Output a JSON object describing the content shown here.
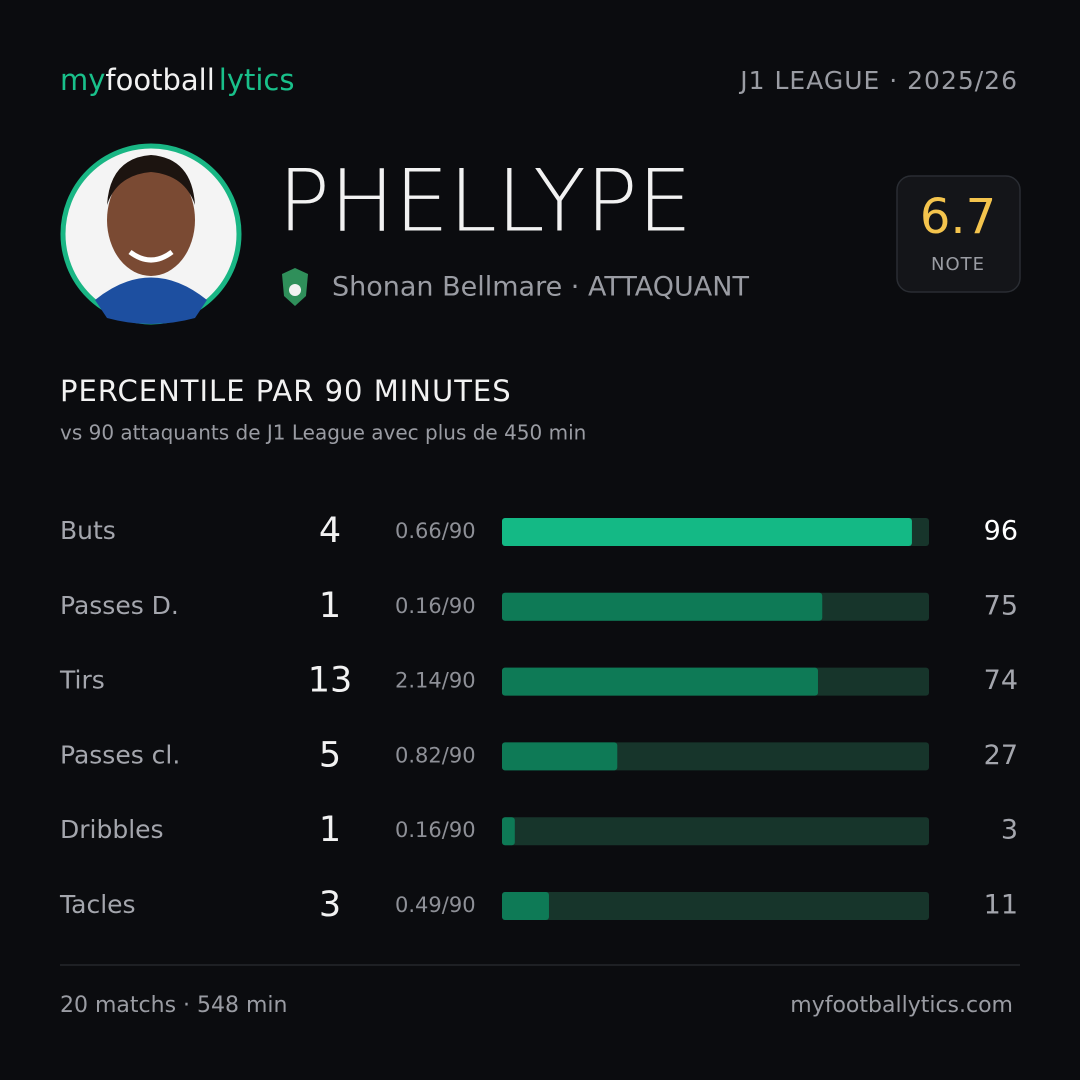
{
  "header": {
    "logo": [
      "my",
      "football",
      "lytics"
    ],
    "league": "J1 LEAGUE · 2025/26"
  },
  "player": {
    "name": "PHELLYPE",
    "club_position": "Shonan Bellmare · ATTAQUANT",
    "rating": 6.7,
    "rating_label": "NOTE"
  },
  "chart_data": {
    "type": "bar",
    "title": "PERCENTILE PAR 90 MINUTES",
    "subtitle": "vs 90 attaquants de J1 League avec plus de 450 min",
    "categories": [
      "Buts",
      "Passes D.",
      "Tirs",
      "Passes cl.",
      "Dribbles",
      "Tacles"
    ],
    "counts": [
      4,
      1,
      13,
      5,
      1,
      3
    ],
    "per90": [
      "0.66/90",
      "0.16/90",
      "2.14/90",
      "0.82/90",
      "0.16/90",
      "0.49/90"
    ],
    "values": [
      96,
      75,
      74,
      27,
      3,
      11
    ],
    "colors": [
      "#14b985",
      "#0e7a56",
      "#0e7a56",
      "#0e7a56",
      "#0e7a56",
      "#0e7a56"
    ],
    "track_color": "#17352b",
    "xlim": [
      0,
      100
    ]
  },
  "footer": {
    "left": "20 matchs · 548 min",
    "right": "myfootballytics.com"
  }
}
